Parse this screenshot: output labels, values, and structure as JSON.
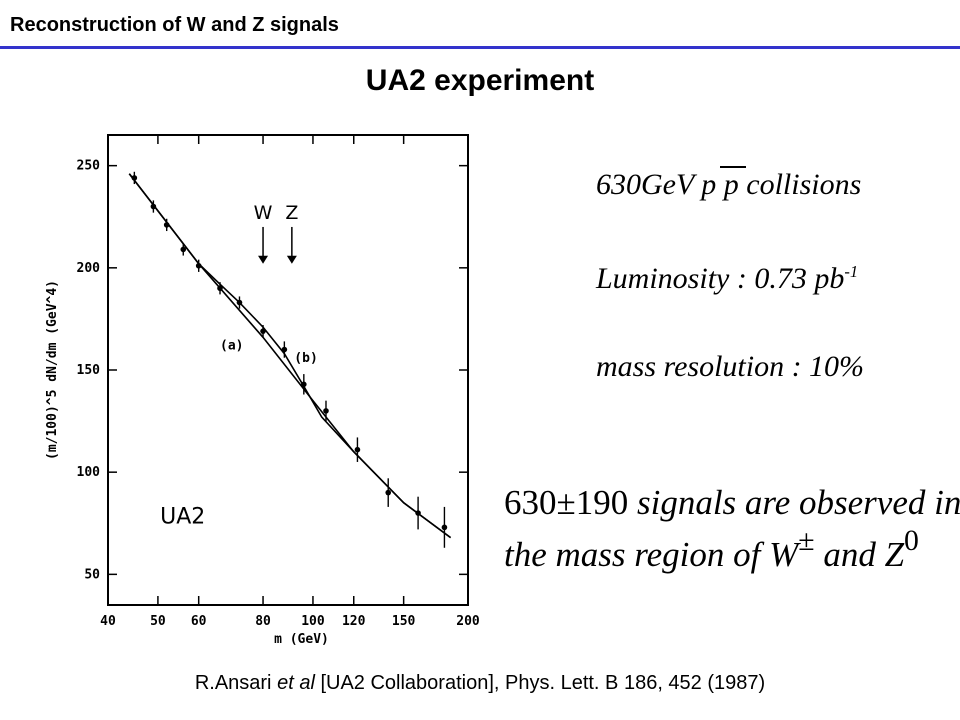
{
  "header": {
    "section_title": "Reconstruction of W and Z signals"
  },
  "slide": {
    "title": "UA2 experiment"
  },
  "notes": {
    "collisions_energy": "630GeV",
    "collisions_particles": "p p",
    "collisions_word": "collisions",
    "luminosity_label": "Luminosity :",
    "luminosity_value": "0.73 pb",
    "luminosity_exp": "-1",
    "mass_resolution": "mass resolution : 10%",
    "signals_count": "630±190",
    "signals_line1_rest": "signals are observed in",
    "signals_line2_pre": "the mass region of",
    "w_symbol": "W",
    "w_sup": "±",
    "and_word": "and",
    "z_symbol": "Z",
    "z_sup": "0"
  },
  "reference": {
    "authors": "R.Ansari",
    "et_al": "et al",
    "collab": "[UA2 Collaboration],",
    "journal": "Phys. Lett. B 186, 452 (1987)"
  },
  "chart_data": {
    "type": "scatter",
    "experiment_label": "UA2",
    "xlabel": "m (GeV)",
    "ylabel": "(m/100)^5 dN/dm (GeV^4)",
    "x_scale": "log",
    "xlim": [
      40,
      200
    ],
    "ylim": [
      35,
      265
    ],
    "x_ticks": [
      40,
      50,
      60,
      80,
      100,
      120,
      150,
      200
    ],
    "y_ticks": [
      50,
      100,
      150,
      200,
      250
    ],
    "points": [
      {
        "x": 45,
        "y": 244,
        "err": 3
      },
      {
        "x": 49,
        "y": 230,
        "err": 3
      },
      {
        "x": 52,
        "y": 221,
        "err": 3
      },
      {
        "x": 56,
        "y": 209,
        "err": 3
      },
      {
        "x": 60,
        "y": 201,
        "err": 3
      },
      {
        "x": 66,
        "y": 190,
        "err": 3
      },
      {
        "x": 72,
        "y": 183,
        "err": 3
      },
      {
        "x": 80,
        "y": 169,
        "err": 3
      },
      {
        "x": 88,
        "y": 160,
        "err": 4
      },
      {
        "x": 96,
        "y": 143,
        "err": 5
      },
      {
        "x": 106,
        "y": 130,
        "err": 5
      },
      {
        "x": 122,
        "y": 111,
        "err": 6
      },
      {
        "x": 140,
        "y": 90,
        "err": 7
      },
      {
        "x": 160,
        "y": 80,
        "err": 8
      },
      {
        "x": 180,
        "y": 73,
        "err": 10
      }
    ],
    "series": [
      {
        "name": "(a)",
        "x": [
          44,
          60,
          80,
          100,
          120,
          150,
          185
        ],
        "y": [
          246,
          202,
          166,
          135,
          110,
          85,
          68
        ]
      },
      {
        "name": "(b)",
        "x": [
          44,
          60,
          66,
          72,
          80,
          88,
          96,
          104,
          120,
          150,
          185
        ],
        "y": [
          246,
          202,
          192,
          183,
          171,
          158,
          142,
          127,
          110,
          85,
          68
        ]
      }
    ],
    "annotations": [
      {
        "text": "W",
        "x": 80,
        "arrow_from_y": 220,
        "arrow_to_y": 202
      },
      {
        "text": "Z",
        "x": 91,
        "arrow_from_y": 220,
        "arrow_to_y": 202
      }
    ]
  }
}
